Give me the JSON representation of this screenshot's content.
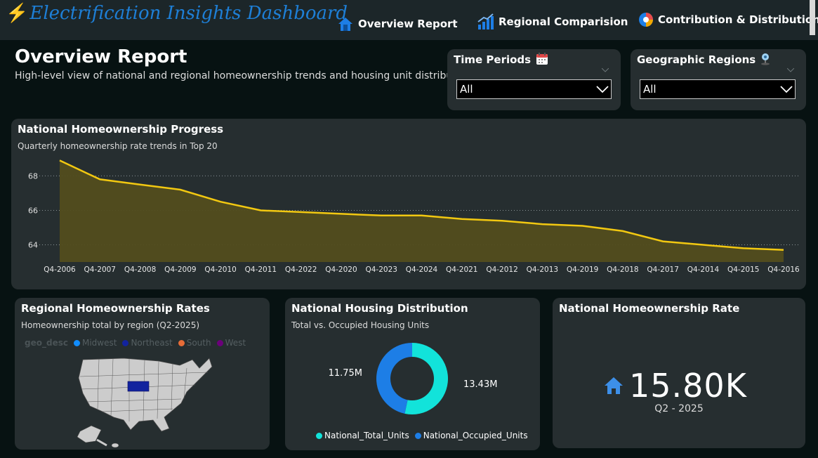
{
  "app": {
    "title": "Electrification Insights Dashboard"
  },
  "nav": [
    {
      "label": "Overview Report",
      "icon": "house-icon"
    },
    {
      "label": "Regional Comparision",
      "icon": "bar-chart-icon"
    },
    {
      "label": "Contribution & Distribution",
      "icon": "pie-chart-icon"
    }
  ],
  "header": {
    "title": "Overview Report",
    "subtitle": "High-level view of national and regional homeownership trends and housing unit distribution"
  },
  "filters": {
    "time": {
      "label": "Time Periods",
      "icon": "calendar-icon",
      "value": "All"
    },
    "geo": {
      "label": "Geographic Regions",
      "icon": "location-pin-icon",
      "value": "All"
    }
  },
  "line_panel": {
    "title": "National Homeownership Progress",
    "subtitle": "Quarterly homeownership rate trends in Top 20"
  },
  "map_panel": {
    "title": "Regional Homeownership Rates",
    "subtitle": "Homeownership total by region (Q2-2025)",
    "legend_header": "geo_desc",
    "legend": [
      {
        "name": "Midwest",
        "color": "#118dff"
      },
      {
        "name": "Northeast",
        "color": "#12239e"
      },
      {
        "name": "South",
        "color": "#e66c37"
      },
      {
        "name": "West",
        "color": "#6b007b"
      }
    ]
  },
  "donut_panel": {
    "title": "National Housing Distribution",
    "subtitle": "Total vs. Occupied Housing Units"
  },
  "kpi_panel": {
    "title": "National Homeownership Rate",
    "value": "15.80K",
    "label": "Q2 - 2025",
    "icon": "house-icon"
  },
  "chart_data": [
    {
      "type": "area",
      "categories": [
        "Q4-2006",
        "Q4-2007",
        "Q4-2008",
        "Q4-2009",
        "Q4-2010",
        "Q4-2011",
        "Q4-2022",
        "Q4-2020",
        "Q4-2023",
        "Q4-2024",
        "Q4-2021",
        "Q4-2012",
        "Q4-2013",
        "Q4-2019",
        "Q4-2018",
        "Q4-2017",
        "Q4-2014",
        "Q4-2015",
        "Q4-2016"
      ],
      "series": [
        {
          "values": [
            68.9,
            67.8,
            67.5,
            67.2,
            66.5,
            66.0,
            65.9,
            65.8,
            65.7,
            65.7,
            65.5,
            65.4,
            65.2,
            65.1,
            64.8,
            64.2,
            64.0,
            63.8,
            63.7
          ],
          "color": "#f2c811"
        }
      ],
      "y_ticks": [
        64,
        66,
        68
      ],
      "ylim": [
        63,
        69.2
      ],
      "grid": true
    },
    {
      "type": "pie",
      "donut": true,
      "slices": [
        {
          "name": "National_Total_Units",
          "value": 13.43,
          "label": "13.43M",
          "color": "#12e3da"
        },
        {
          "name": "National_Occupied_Units",
          "value": 11.75,
          "label": "11.75M",
          "color": "#1d7ee6"
        }
      ]
    }
  ]
}
